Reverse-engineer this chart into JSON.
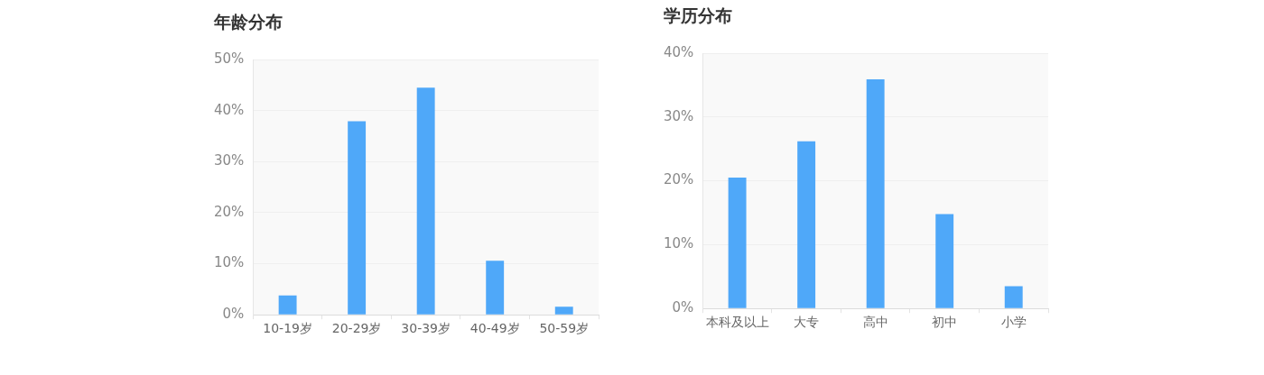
{
  "chart_data": [
    {
      "type": "bar",
      "title": "年龄分布",
      "categories": [
        "10-19岁",
        "20-29岁",
        "30-39岁",
        "40-49岁",
        "50-59岁"
      ],
      "values": [
        3.8,
        37.9,
        44.5,
        10.6,
        1.6
      ],
      "color": "#4fa8f9",
      "ylim": [
        0,
        50
      ],
      "yticks": [
        {
          "value": 0,
          "label": "0%"
        },
        {
          "value": 10,
          "label": "10%"
        },
        {
          "value": 20,
          "label": "20%"
        },
        {
          "value": 30,
          "label": "30%"
        },
        {
          "value": 40,
          "label": "40%"
        },
        {
          "value": 50,
          "label": "50%"
        }
      ],
      "grid": "y",
      "legend": false
    },
    {
      "type": "bar",
      "title": "学历分布",
      "categories": [
        "本科及以上",
        "大专",
        "高中",
        "初中",
        "小学"
      ],
      "values": [
        20.5,
        26.2,
        35.9,
        14.8,
        3.5
      ],
      "color": "#4fa8f9",
      "ylim": [
        0,
        40
      ],
      "yticks": [
        {
          "value": 0,
          "label": "0%"
        },
        {
          "value": 10,
          "label": "10%"
        },
        {
          "value": 20,
          "label": "20%"
        },
        {
          "value": 30,
          "label": "30%"
        },
        {
          "value": 40,
          "label": "40%"
        }
      ],
      "grid": "y",
      "legend": false
    }
  ]
}
